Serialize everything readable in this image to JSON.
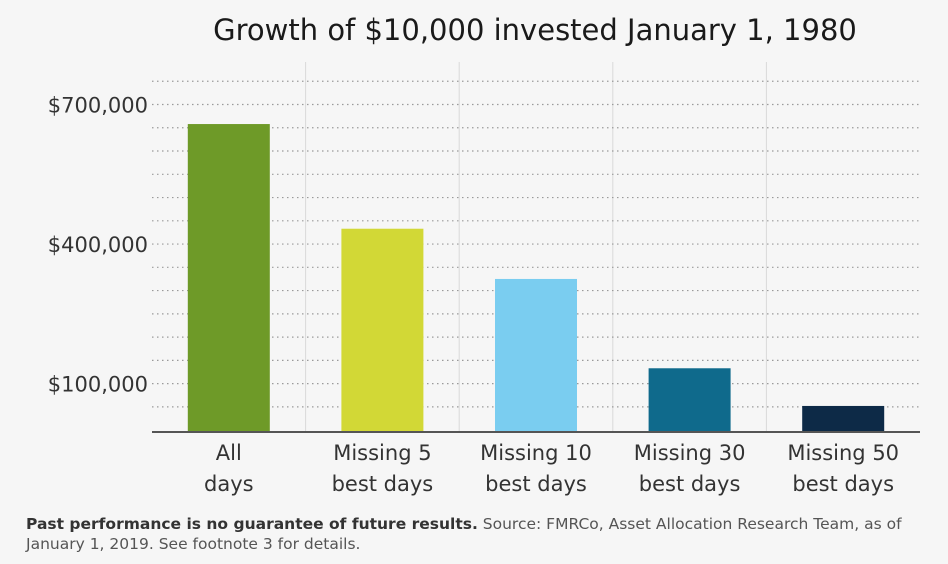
{
  "chart_data": {
    "type": "bar",
    "title": "Growth of $10,000 invested January 1, 1980",
    "categories": [
      [
        "All",
        "days"
      ],
      [
        "Missing 5",
        "best days"
      ],
      [
        "Missing 10",
        "best days"
      ],
      [
        "Missing 30",
        "best days"
      ],
      [
        "Missing 50",
        "best days"
      ]
    ],
    "values": [
      658000,
      433000,
      325000,
      133000,
      52000
    ],
    "colors": [
      "#6e9a28",
      "#d2d836",
      "#7acdf0",
      "#0f6a8c",
      "#0d2a47"
    ],
    "yticks": [
      100000,
      400000,
      700000
    ],
    "ytick_labels": [
      "$100,000",
      "$400,000",
      "$700,000"
    ],
    "ylim": [
      -4000,
      800000
    ],
    "grid": true,
    "xlabel": "",
    "ylabel": ""
  },
  "footnote": {
    "bold": "Past performance is no guarantee of future results.",
    "text": " Source: FMRCo, Asset Allocation Research Team, as of January 1, 2019. See footnote 3 for details."
  }
}
